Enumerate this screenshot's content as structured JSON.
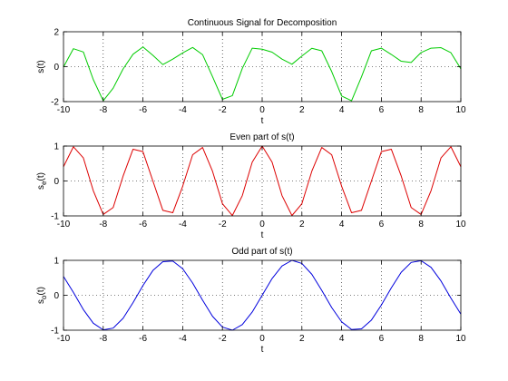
{
  "chart_data": [
    {
      "type": "line",
      "title": "Continuous Signal for Decomposition",
      "xlabel": "t",
      "ylabel": "s(t)",
      "ylabel_parts": {
        "main": "s(t)",
        "sub": ""
      },
      "xlim": [
        -10,
        10
      ],
      "ylim": [
        -2,
        2
      ],
      "xticks": [
        "-10",
        "-8",
        "-6",
        "-4",
        "-2",
        "0",
        "2",
        "4",
        "6",
        "8",
        "10"
      ],
      "yticks": [
        "-2",
        "0",
        "2"
      ],
      "grid": true,
      "series": [
        {
          "color": "#00cc00",
          "x": [
            -10,
            -9.5,
            -9,
            -8.5,
            -8,
            -7.5,
            -7,
            -6.5,
            -6,
            -5.5,
            -5,
            -4.5,
            -4,
            -3.5,
            -3,
            -2.5,
            -2,
            -1.5,
            -1,
            -0.5,
            0,
            0.5,
            1,
            1.5,
            2,
            2.5,
            3,
            3.5,
            4,
            4.5,
            5,
            5.5,
            6,
            6.5,
            7,
            7.5,
            8,
            8.5,
            9,
            9.5,
            10
          ],
          "y": [
            -0.02,
            1.03,
            0.84,
            -0.74,
            -1.95,
            -1.23,
            -0.13,
            0.71,
            1.13,
            0.65,
            0.12,
            0.43,
            0.79,
            1.1,
            0.69,
            -0.57,
            -1.87,
            -1.66,
            -0.1,
            1.06,
            1.0,
            0.83,
            0.43,
            0.14,
            0.61,
            1.05,
            0.91,
            -0.28,
            -1.68,
            -1.95,
            -0.58,
            0.91,
            1.06,
            0.7,
            0.31,
            0.24,
            0.81,
            1.06,
            1.09,
            0.8,
            -0.12
          ]
        }
      ]
    },
    {
      "type": "line",
      "title": "Even part of s(t)",
      "xlabel": "t",
      "ylabel": "s_e(t)",
      "ylabel_parts": {
        "main": "s",
        "sub": "e",
        "tail": "(t)"
      },
      "xlim": [
        -10,
        10
      ],
      "ylim": [
        -1,
        1
      ],
      "xticks": [
        "-10",
        "-8",
        "-6",
        "-4",
        "-2",
        "0",
        "2",
        "4",
        "6",
        "8",
        "10"
      ],
      "yticks": [
        "-1",
        "0",
        "1"
      ],
      "grid": true,
      "series": [
        {
          "color": "#dd0000",
          "x": [
            -10,
            -9.5,
            -9,
            -8.5,
            -8,
            -7.5,
            -7,
            -6.5,
            -6,
            -5.5,
            -5,
            -4.5,
            -4,
            -3.5,
            -3,
            -2.5,
            -2,
            -1.5,
            -1,
            -0.5,
            0,
            0.5,
            1,
            1.5,
            2,
            2.5,
            3,
            3.5,
            4,
            4.5,
            5,
            5.5,
            6,
            6.5,
            7,
            7.5,
            8,
            8.5,
            9,
            9.5,
            10
          ],
          "y": [
            0.41,
            0.98,
            0.66,
            -0.28,
            -0.96,
            -0.76,
            0.14,
            0.91,
            0.84,
            0.0,
            -0.84,
            -0.91,
            -0.15,
            0.75,
            0.96,
            0.28,
            -0.65,
            -0.99,
            -0.42,
            0.54,
            1.0,
            0.54,
            -0.42,
            -0.99,
            -0.65,
            0.28,
            0.96,
            0.75,
            -0.15,
            -0.91,
            -0.84,
            0.0,
            0.84,
            0.91,
            0.14,
            -0.76,
            -0.96,
            -0.28,
            0.66,
            0.98,
            0.41
          ]
        }
      ]
    },
    {
      "type": "line",
      "title": "Odd part of s(t)",
      "xlabel": "t",
      "ylabel": "s_o(t)",
      "ylabel_parts": {
        "main": "s",
        "sub": "o",
        "tail": "(t)"
      },
      "xlim": [
        -10,
        10
      ],
      "ylim": [
        -1,
        1
      ],
      "xticks": [
        "-10",
        "-8",
        "-6",
        "-4",
        "-2",
        "0",
        "2",
        "4",
        "6",
        "8",
        "10"
      ],
      "yticks": [
        "-1",
        "0",
        "1"
      ],
      "grid": true,
      "series": [
        {
          "color": "#0000dd",
          "x": [
            -10,
            -9.5,
            -9,
            -8.5,
            -8,
            -7.5,
            -7,
            -6.5,
            -6,
            -5.5,
            -5,
            -4.5,
            -4,
            -3.5,
            -3,
            -2.5,
            -2,
            -1.5,
            -1,
            -0.5,
            0,
            0.5,
            1,
            1.5,
            2,
            2.5,
            3,
            3.5,
            4,
            4.5,
            5,
            5.5,
            6,
            6.5,
            7,
            7.5,
            8,
            8.5,
            9,
            9.5,
            10
          ],
          "y": [
            0.54,
            0.08,
            -0.41,
            -0.8,
            -0.99,
            -0.94,
            -0.66,
            -0.21,
            0.28,
            0.71,
            0.96,
            0.98,
            0.76,
            0.35,
            -0.14,
            -0.6,
            -0.91,
            -1.0,
            -0.84,
            -0.48,
            0.0,
            0.48,
            0.84,
            1.0,
            0.91,
            0.6,
            0.14,
            -0.35,
            -0.76,
            -0.98,
            -0.96,
            -0.71,
            -0.28,
            0.21,
            0.66,
            0.94,
            0.99,
            0.8,
            0.41,
            -0.08,
            -0.54
          ]
        }
      ]
    }
  ]
}
